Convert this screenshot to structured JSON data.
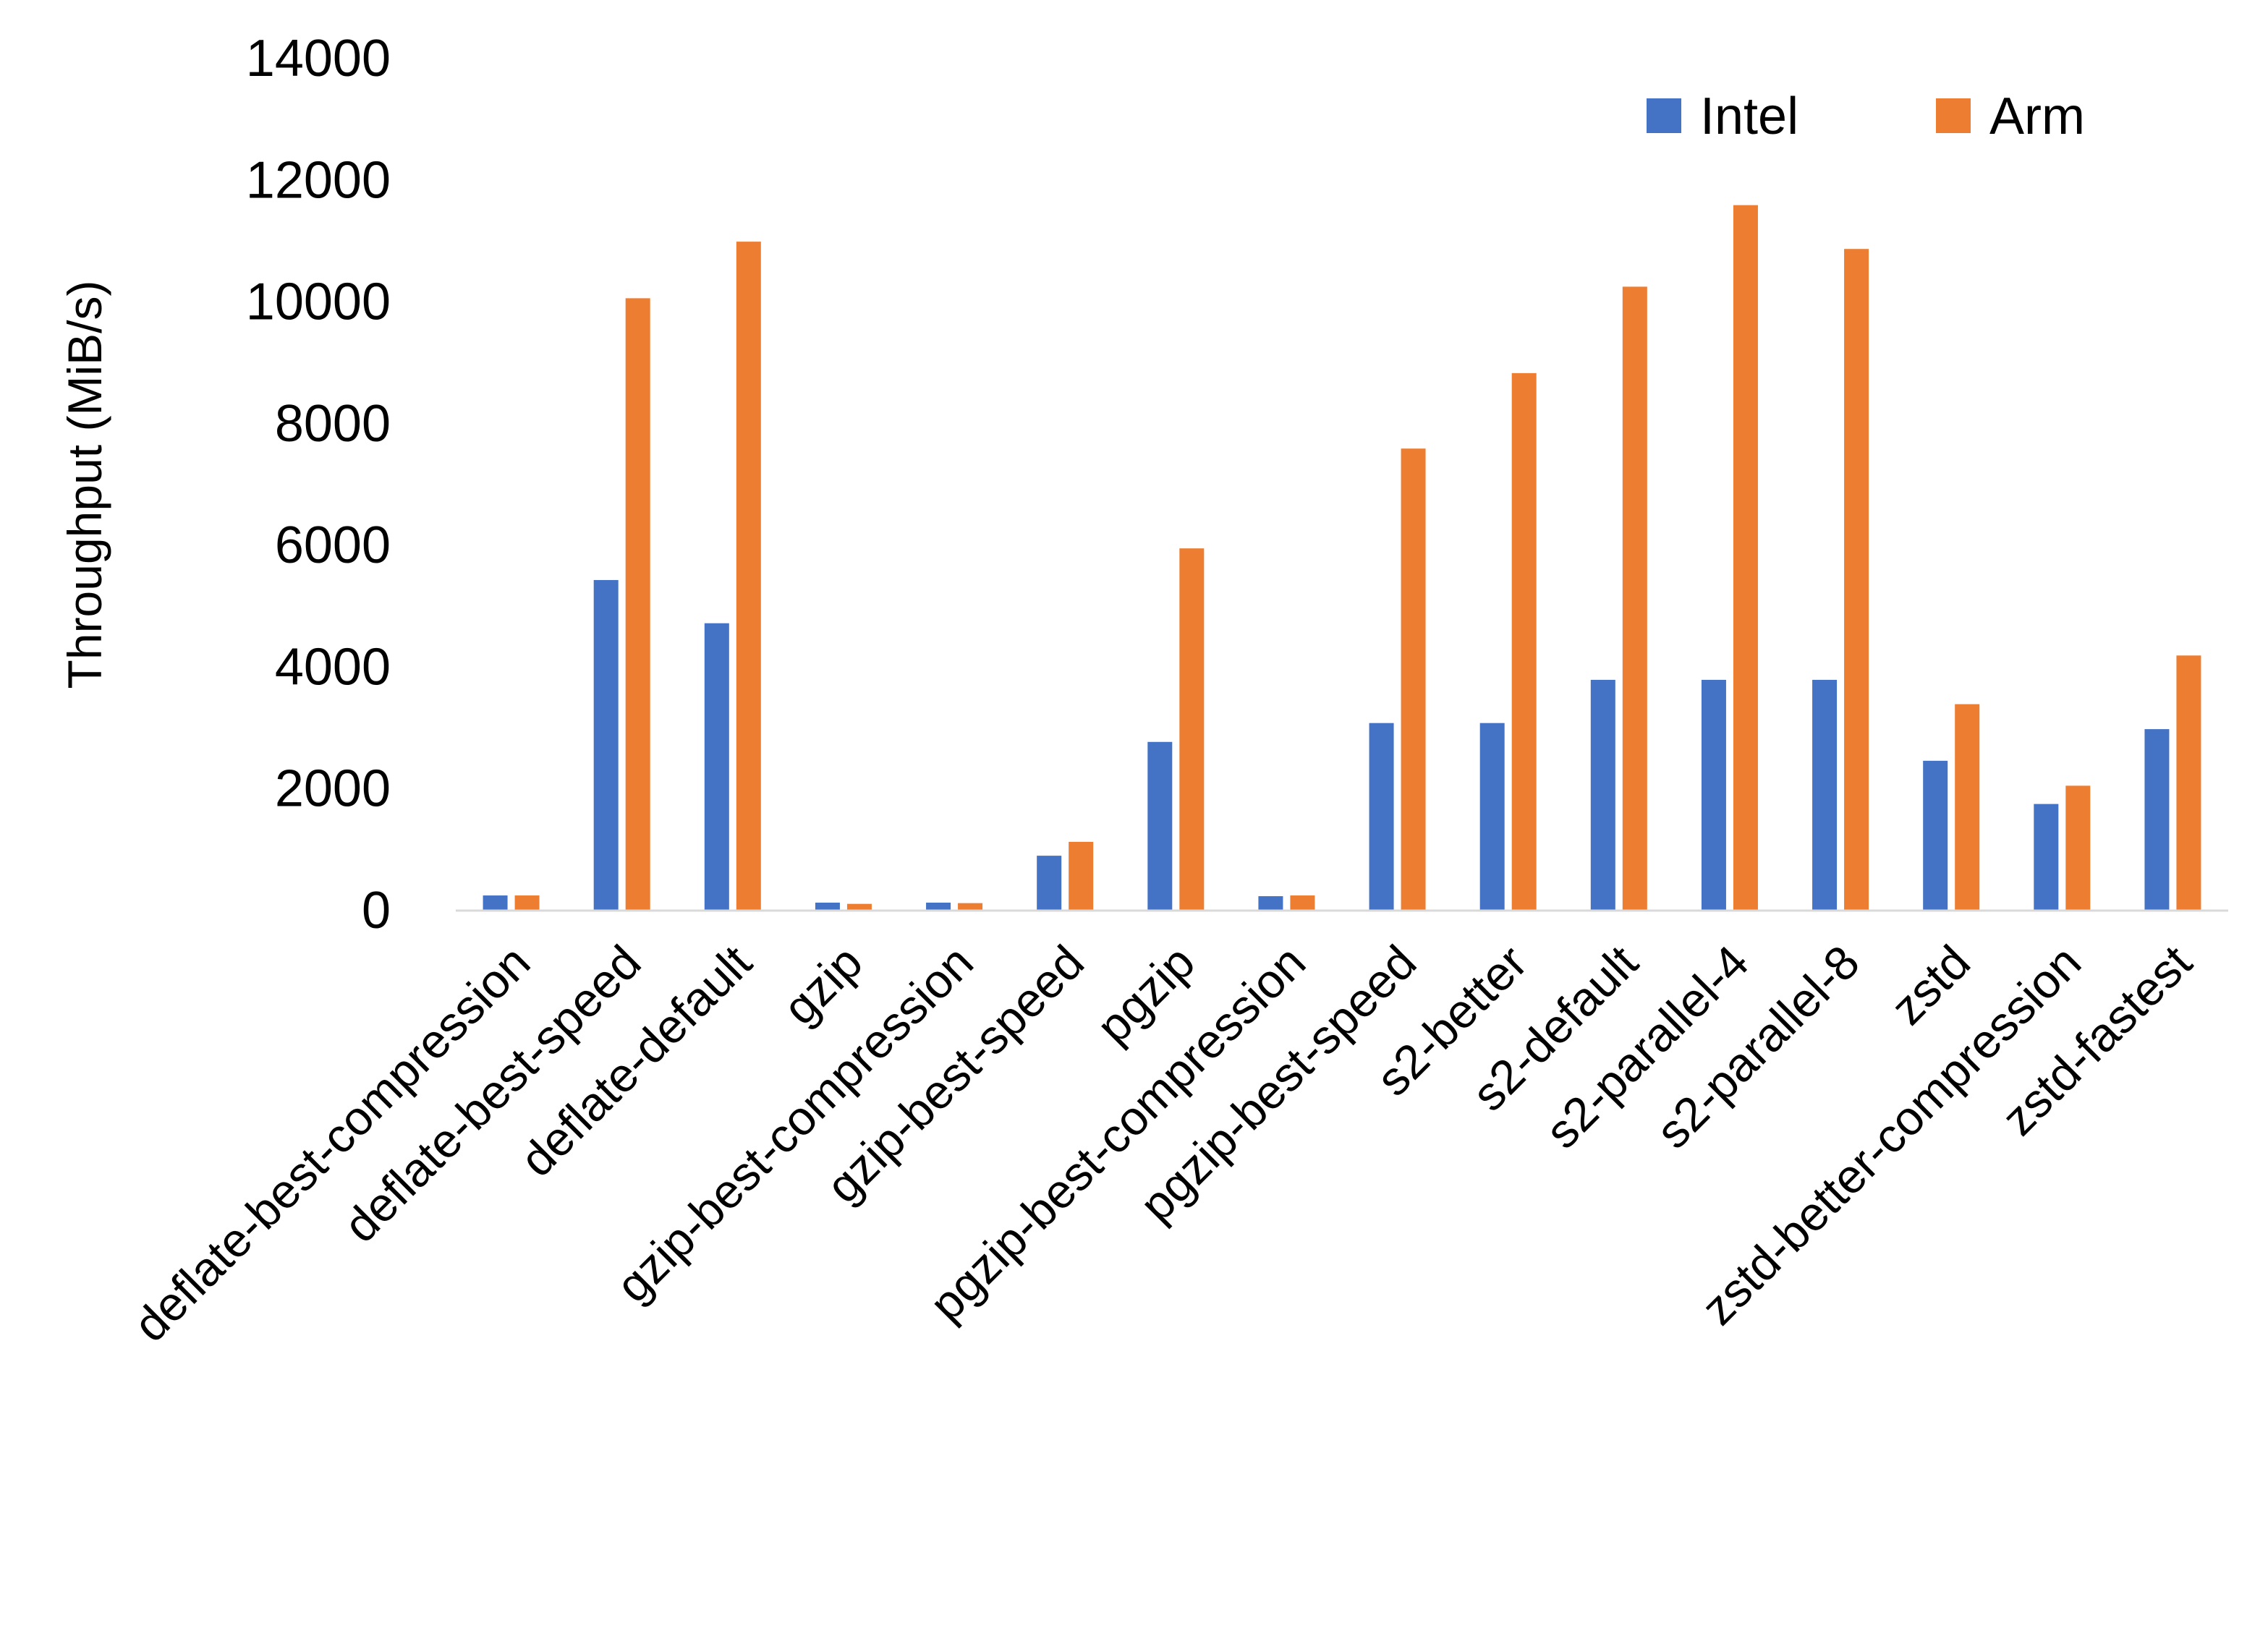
{
  "chart_data": {
    "type": "bar",
    "title": "",
    "xlabel": "",
    "ylabel": "Throughput (MiB/s)",
    "ylim": [
      0,
      14000
    ],
    "yticks": [
      0,
      2000,
      4000,
      6000,
      8000,
      10000,
      12000,
      14000
    ],
    "grid": false,
    "legend_position": "top-right",
    "categories": [
      "deflate-best-compression",
      "deflate-best-speed",
      "deflate-default",
      "gzip",
      "gzip-best-compression",
      "gzip-best-speed",
      "pgzip",
      "pgzip-best-compression",
      "pgzip-best-speed",
      "s2-better",
      "s2-default",
      "s2-parallel-4",
      "s2-parallel-8",
      "zstd",
      "zstd-better-compression",
      "zstd-fastest"
    ],
    "series": [
      {
        "name": "Intel",
        "color": "#4472C4",
        "values": [
          237,
          5420,
          4710,
          119,
          119,
          890,
          2760,
          225,
          3070,
          3070,
          3780,
          3780,
          3780,
          2450,
          1740,
          2970
        ]
      },
      {
        "name": "Arm",
        "color": "#ED7D31",
        "values": [
          237,
          10050,
          10980,
          99,
          111,
          1118,
          5940,
          237,
          7580,
          8820,
          10240,
          11580,
          10860,
          3380,
          2040,
          4180
        ]
      }
    ]
  }
}
